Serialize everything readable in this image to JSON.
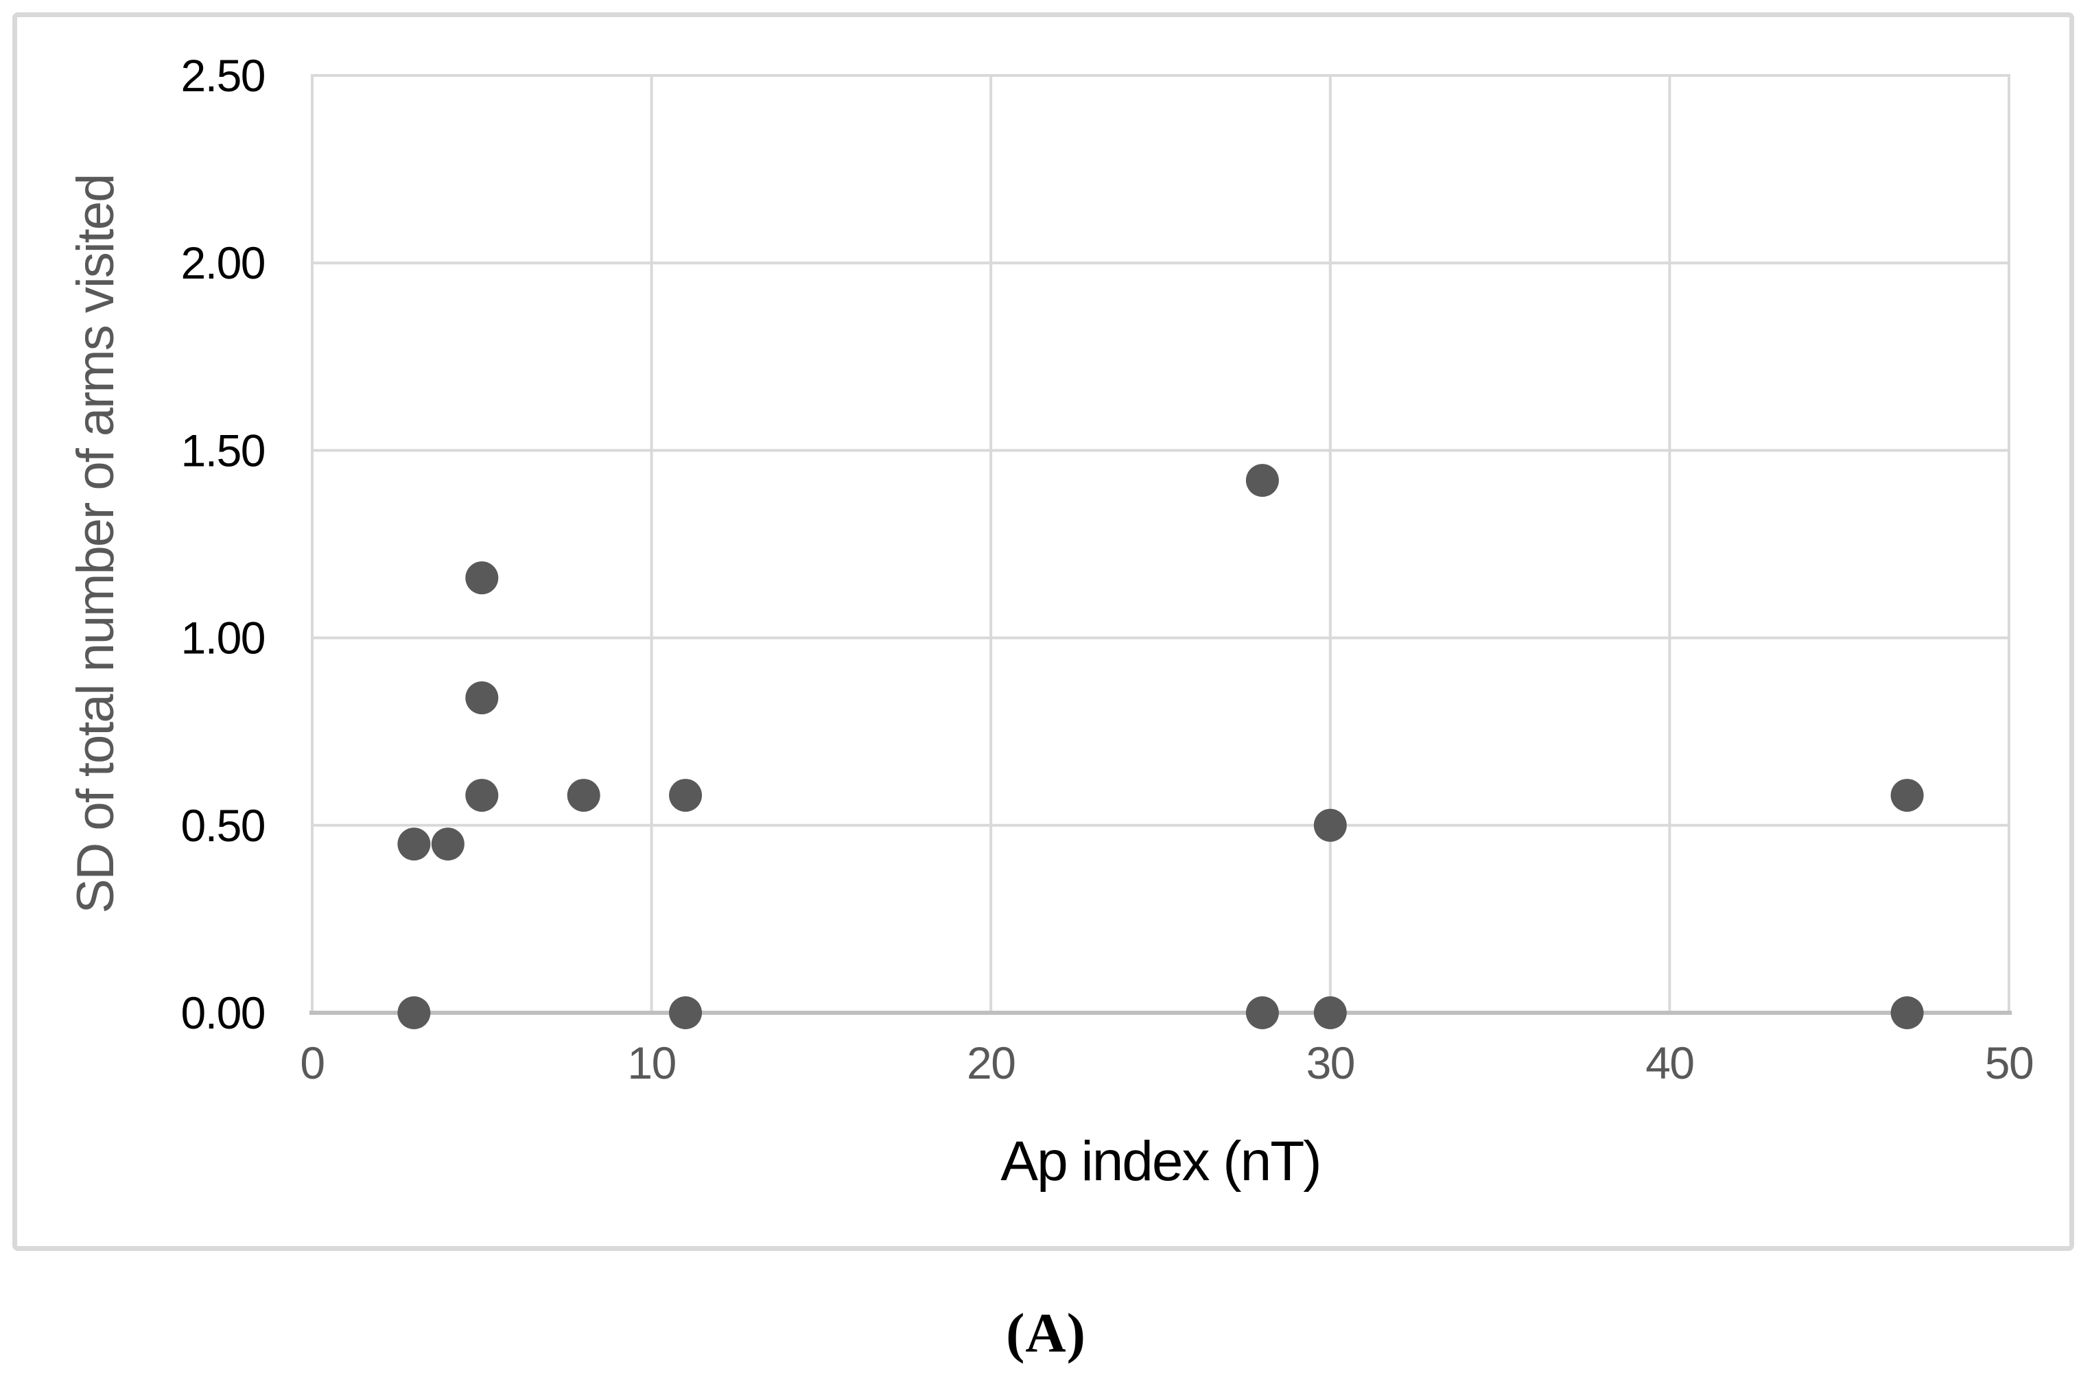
{
  "page": {
    "background": "#ffffff",
    "caption": "(A)"
  },
  "chart_data": {
    "type": "scatter",
    "title": "",
    "xlabel": "Ap index (nT)",
    "ylabel": "SD of total number of arms visited",
    "xlim": [
      0,
      50
    ],
    "ylim": [
      0,
      2.5
    ],
    "grid": true,
    "legend": false,
    "x_ticks": [
      {
        "value": 0,
        "label": "0"
      },
      {
        "value": 10,
        "label": "10"
      },
      {
        "value": 20,
        "label": "20"
      },
      {
        "value": 30,
        "label": "30"
      },
      {
        "value": 40,
        "label": "40"
      },
      {
        "value": 50,
        "label": "50"
      }
    ],
    "y_ticks": [
      {
        "value": 0.0,
        "label": "0.00"
      },
      {
        "value": 0.5,
        "label": "0.50"
      },
      {
        "value": 1.0,
        "label": "1.00"
      },
      {
        "value": 1.5,
        "label": "1.50"
      },
      {
        "value": 2.0,
        "label": "2.00"
      },
      {
        "value": 2.5,
        "label": "2.50"
      }
    ],
    "points": [
      {
        "x": 3,
        "y": 0.0
      },
      {
        "x": 3,
        "y": 0.45
      },
      {
        "x": 4,
        "y": 0.45
      },
      {
        "x": 5,
        "y": 0.58
      },
      {
        "x": 5,
        "y": 0.84
      },
      {
        "x": 5,
        "y": 1.16
      },
      {
        "x": 8,
        "y": 0.58
      },
      {
        "x": 11,
        "y": 0.0
      },
      {
        "x": 11,
        "y": 0.58
      },
      {
        "x": 28,
        "y": 0.0
      },
      {
        "x": 28,
        "y": 1.42
      },
      {
        "x": 30,
        "y": 0.0
      },
      {
        "x": 30,
        "y": 0.5
      },
      {
        "x": 47,
        "y": 0.0
      },
      {
        "x": 47,
        "y": 0.58
      }
    ],
    "marker": {
      "shape": "circle",
      "radius_px": 24,
      "color": "#595959"
    },
    "styles": {
      "gridline_color": "#d9d9d9",
      "axis_line_color": "#bfbfbf",
      "x_tick_color": "#595959",
      "y_tick_color": "#000000",
      "xlabel_color": "#000000",
      "ylabel_color": "#595959",
      "frame_border_color": "#d9d9d9"
    }
  }
}
